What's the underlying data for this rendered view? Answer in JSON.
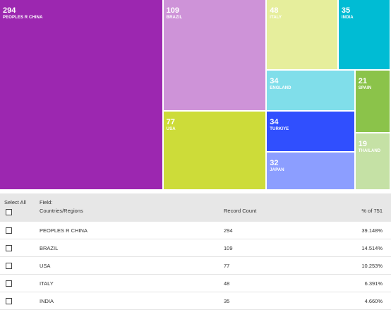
{
  "chart_data": {
    "type": "treemap",
    "total": 751,
    "items": [
      {
        "label": "PEOPLES R CHINA",
        "value": 294,
        "color": "#9c27b0"
      },
      {
        "label": "BRAZIL",
        "value": 109,
        "color": "#ce93d8"
      },
      {
        "label": "USA",
        "value": 77,
        "color": "#cddc39"
      },
      {
        "label": "ITALY",
        "value": 48,
        "color": "#e6ee9c"
      },
      {
        "label": "INDIA",
        "value": 35,
        "color": "#00bcd4"
      },
      {
        "label": "ENGLAND",
        "value": 34,
        "color": "#80deea"
      },
      {
        "label": "TURKIYE",
        "value": 34,
        "color": "#304ffe"
      },
      {
        "label": "JAPAN",
        "value": 32,
        "color": "#8c9eff"
      },
      {
        "label": "SPAIN",
        "value": 21,
        "color": "#8bc34a"
      },
      {
        "label": "THAILAND",
        "value": 19,
        "color": "#c5e1a5"
      }
    ]
  },
  "table": {
    "select_all_label": "Select All",
    "field_label": "Field:",
    "field_name": "Countries/Regions",
    "count_header": "Record Count",
    "pct_header": "% of 751",
    "rows": [
      {
        "name": "PEOPLES R CHINA",
        "count": "294",
        "pct": "39.148%"
      },
      {
        "name": "BRAZIL",
        "count": "109",
        "pct": "14.514%"
      },
      {
        "name": "USA",
        "count": "77",
        "pct": "10.253%"
      },
      {
        "name": "ITALY",
        "count": "48",
        "pct": "6.391%"
      },
      {
        "name": "INDIA",
        "count": "35",
        "pct": "4.660%"
      }
    ]
  }
}
